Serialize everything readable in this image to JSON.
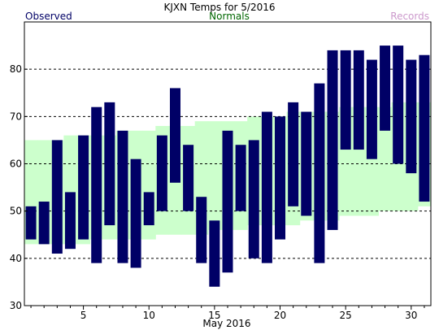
{
  "colors": {
    "observed": "#000066",
    "normals_band": "#ccffcc",
    "normals_label": "#006600",
    "records_label": "#cc99cc",
    "title": "#000000",
    "grid": "#000000"
  },
  "chart_data": {
    "type": "bar",
    "title": "KJXN Temps for 5/2016",
    "xlabel": "May 2016",
    "ylabel": "",
    "legend": {
      "observed": "Observed",
      "normals": "Normals",
      "records": "Records"
    },
    "xlim": [
      1,
      31
    ],
    "ylim": [
      30,
      90
    ],
    "yticks": [
      30,
      40,
      50,
      60,
      70,
      80
    ],
    "xticks": [
      5,
      10,
      15,
      20,
      25,
      30
    ],
    "gridlines_y": [
      40,
      50,
      60,
      70,
      80
    ],
    "grid": "horizontal dashed",
    "days": [
      1,
      2,
      3,
      4,
      5,
      6,
      7,
      8,
      9,
      10,
      11,
      12,
      13,
      14,
      15,
      16,
      17,
      18,
      19,
      20,
      21,
      22,
      23,
      24,
      25,
      26,
      27,
      28,
      29,
      30,
      31
    ],
    "observed_high": [
      51,
      52,
      65,
      54,
      66,
      72,
      73,
      67,
      61,
      54,
      66,
      76,
      64,
      53,
      48,
      67,
      64,
      65,
      71,
      70,
      73,
      71,
      77,
      84,
      84,
      84,
      82,
      85,
      85,
      82,
      83
    ],
    "observed_low": [
      44,
      43,
      41,
      42,
      44,
      39,
      47,
      39,
      38,
      47,
      50,
      56,
      50,
      39,
      34,
      37,
      50,
      40,
      39,
      44,
      51,
      49,
      39,
      46,
      63,
      63,
      61,
      67,
      60,
      58,
      52
    ],
    "normal_high": [
      65,
      65,
      65,
      66,
      66,
      66,
      66,
      67,
      67,
      67,
      68,
      68,
      68,
      69,
      69,
      69,
      69,
      70,
      70,
      70,
      71,
      71,
      71,
      71,
      72,
      72,
      72,
      72,
      73,
      73,
      73
    ],
    "normal_low": [
      43,
      43,
      43,
      43,
      43,
      44,
      44,
      44,
      44,
      44,
      45,
      45,
      45,
      45,
      46,
      46,
      46,
      47,
      47,
      47,
      47,
      48,
      48,
      48,
      49,
      49,
      49,
      50,
      50,
      50,
      51
    ]
  }
}
